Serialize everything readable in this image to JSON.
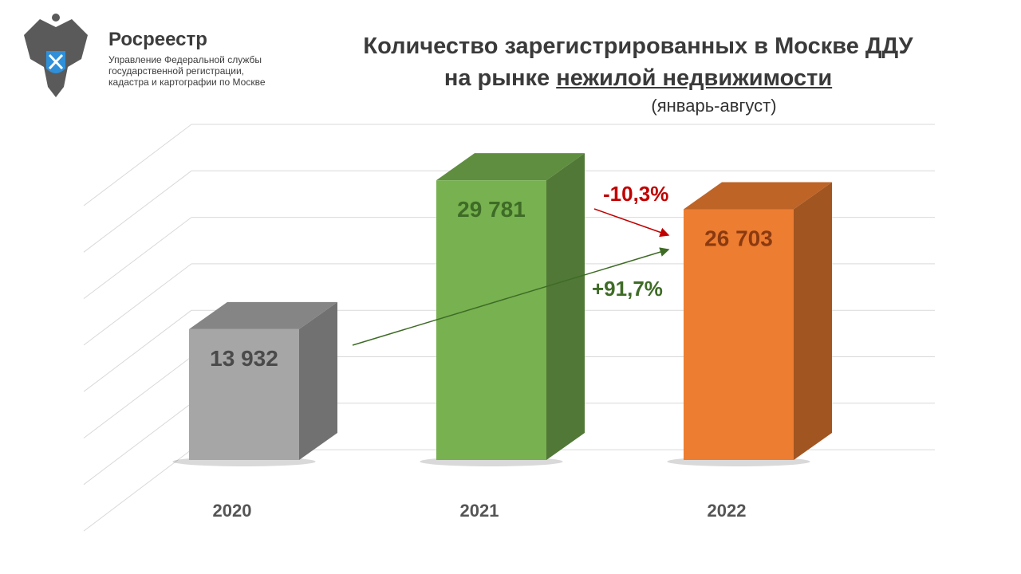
{
  "logo": {
    "brand": "Росреестр",
    "lines": [
      "Управление Федеральной службы",
      "государственной регистрации,",
      "кадастра и картографии по Москве"
    ]
  },
  "title": {
    "line1": "Количество зарегистрированных в Москве ДДУ",
    "line2_prefix": "на рынке ",
    "line2_underlined": "нежилой недвижимости",
    "period": "(январь-август)"
  },
  "chart_data": {
    "type": "bar",
    "style": "3d-column",
    "categories": [
      "2020",
      "2021",
      "2022"
    ],
    "values": [
      13932,
      29781,
      26703
    ],
    "value_labels": [
      "13 932",
      "29 781",
      "26 703"
    ],
    "colors": [
      "#a6a6a6",
      "#77b150",
      "#ed7d31"
    ],
    "label_colors": [
      "#4a4a4a",
      "#3e6b26",
      "#8a3a10"
    ],
    "grid": true,
    "annotations": [
      {
        "text": "+91,7%",
        "from": "2020",
        "to": "2022",
        "color": "#3e6b26"
      },
      {
        "text": "-10,3%",
        "from": "2021",
        "to": "2022",
        "color": "#c00000"
      }
    ]
  }
}
